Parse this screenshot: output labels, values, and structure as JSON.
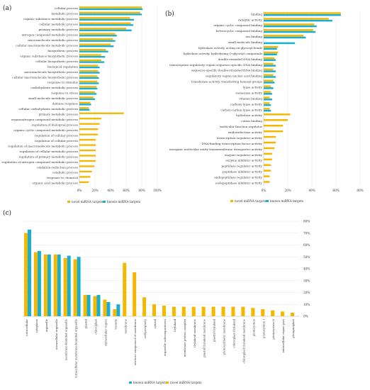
{
  "colors": {
    "novel": "#F5B800",
    "known": "#1AAFD0",
    "axis": "#bfbfbf",
    "grid": "#e6e6e6"
  },
  "chart_data": [
    {
      "panel": "(a)",
      "type": "bar",
      "orientation": "horizontal",
      "categories": [
        "cellular process",
        "metabolic process",
        "organic substance metabolic process",
        "cellular metabolic process",
        "primary metabolic process",
        "nitrogen compound metabolic process",
        "macromolecule metabolic process",
        "cellular macromolecule metabolic process",
        "biosynthetic process",
        "organic substance biosynthetic process",
        "cellular biosynthetic process",
        "biological regulation",
        "macromolecule biosynthetic process",
        "cellular macromolecule biosynthetic process",
        "response to stimulus",
        "carbohydrate metabolic process",
        "response to stress",
        "small molecule metabolic process",
        "defense response",
        "cellular carbohydrate metabolic process",
        "primary metabolic process",
        "organonitrogen compound metabolic process",
        "regulation of biological process",
        "organic cyclic compound metabolic process",
        "regulation of cellular process",
        "regulation of cellular process",
        "regulation of macromolecule metabolic process",
        "regulation of cellular metabolic process",
        "regulation of primary metabolic process",
        "regulation of nitrogen compound metabolic process",
        "oxidation-reduction process",
        "catabolic process",
        "response to chemical",
        "organic acid metabolic process"
      ],
      "series": [
        {
          "name": "novel miRNA targets",
          "values": [
            80,
            78,
            65,
            66,
            60,
            46,
            43,
            40,
            34,
            28,
            28,
            24,
            24,
            23,
            23,
            22,
            20,
            18,
            14,
            12,
            57,
            28,
            26,
            24,
            24,
            21,
            21,
            21,
            21,
            21,
            19,
            16,
            14,
            12
          ]
        },
        {
          "name": "known miRNA targets",
          "values": [
            81,
            80,
            70,
            69,
            67,
            48,
            46,
            44,
            37,
            33,
            32,
            26,
            26,
            25,
            25,
            23,
            22,
            20,
            15,
            13,
            0,
            0,
            0,
            0,
            0,
            0,
            0,
            0,
            0,
            0,
            0,
            0,
            0,
            0
          ]
        }
      ],
      "xlim": [
        0,
        100
      ],
      "xticks": [
        "0%",
        "20%",
        "40%",
        "60%",
        "80%",
        "100%"
      ],
      "legend_position": "bottom"
    },
    {
      "panel": "(b)",
      "type": "bar",
      "orientation": "horizontal",
      "categories": [
        "binding",
        "catalytic activity",
        "organic cyclic compound binding",
        "heterocyclic compound binding",
        "ion binding",
        "small molecule binding",
        "hydrolase activity, acting on glycosyl bonds",
        "hydrolase activity, hydrolyzing O-glycosyl compounds",
        "double-stranded DNA binding",
        "transcription regulatory region sequence-specific DNA binding",
        "sequence-specific double-stranded DNA binding",
        "regulatory region nucleic acid binding",
        "transferase activity, transferring hexosyl groups",
        "lyase activity",
        "isomerase activity",
        "vitamin binding",
        "carboxy-lyase activity",
        "carbon-carbon lyase activity",
        "hydrolase activity",
        "cation binding",
        "molecular function regulator",
        "oxidoreductase activity",
        "transcription regulator activity",
        "DNA-binding transcription factor activity",
        "inorganic molecular entity transmembrane transporter activity",
        "enzyme regulator activity",
        "enzyme inhibitor activity",
        "peptidase regulator activity",
        "peptidase inhibitor activity",
        "endopeptidase regulator activity",
        "endopeptidase inhibitor activity"
      ],
      "series": [
        {
          "name": "novel miRNA targets",
          "values": [
            64,
            54,
            42,
            41,
            33,
            0,
            12,
            12,
            9,
            8,
            8,
            8,
            8,
            6,
            6,
            5,
            5,
            5,
            22,
            20,
            16,
            16,
            10,
            10,
            9,
            7,
            7,
            6,
            6,
            5,
            5
          ]
        },
        {
          "name": "known miRNA targets",
          "values": [
            64,
            57,
            44,
            43,
            35,
            26,
            11,
            11,
            10,
            10,
            10,
            10,
            9,
            8,
            7,
            7,
            6,
            6,
            0,
            0,
            0,
            0,
            0,
            0,
            0,
            0,
            0,
            0,
            0,
            0,
            0
          ]
        }
      ],
      "xlim": [
        0,
        80
      ],
      "xticks": [
        "0%",
        "20%",
        "40%",
        "60%",
        "80%"
      ],
      "legend_position": "bottom"
    },
    {
      "panel": "(c)",
      "type": "bar",
      "orientation": "vertical",
      "categories": [
        "intracellular",
        "cytoplasm",
        "organelle",
        "intracellular organelle",
        "membrane-bounded organelle",
        "intracellular membrane-bounded organelle",
        "plastid",
        "chloroplast",
        "extracellular region",
        "vacuole",
        "membrane",
        "intrinsic component of membrane",
        "cell periphery",
        "cytosol",
        "organelle subcompartment",
        "thylakoid",
        "membrane protein complex",
        "thylakoid membrane",
        "plastid thylakoid membrane",
        "plastid thylakoid",
        "photosynthetic membrane",
        "chloroplast thylakoid",
        "chloroplast thylakoid membrane",
        "photosystem",
        "photosystem I",
        "photosystem II",
        "extracellular region part",
        "phragmoplast"
      ],
      "series": [
        {
          "name": "known miRNA targets",
          "values": [
            73,
            55,
            52,
            52,
            51,
            50,
            18,
            18,
            12,
            10,
            0,
            0,
            0,
            0,
            0,
            0,
            0,
            0,
            0,
            0,
            0,
            0,
            0,
            0,
            0,
            0,
            0,
            0
          ]
        },
        {
          "name": "novel miRNA targets",
          "values": [
            70,
            54,
            52,
            52,
            49,
            48,
            18,
            17,
            14,
            6,
            45,
            37,
            16,
            10,
            9,
            8,
            8,
            8,
            8,
            8,
            8,
            8,
            8,
            7,
            6,
            5,
            4,
            3
          ]
        }
      ],
      "ylim": [
        0,
        80
      ],
      "yticks": [
        "0%",
        "10%",
        "20%",
        "30%",
        "40%",
        "50%",
        "60%",
        "70%",
        "80%"
      ],
      "legend_position": "bottom"
    }
  ]
}
